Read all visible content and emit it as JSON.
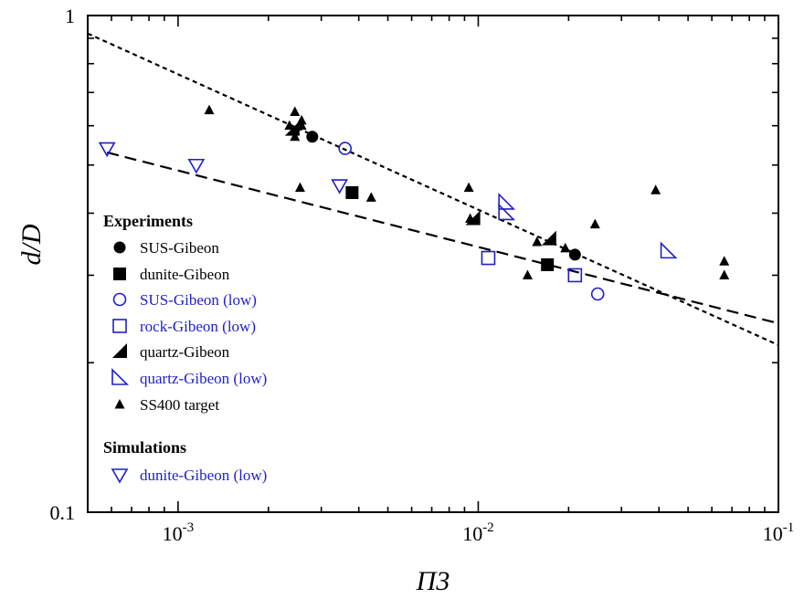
{
  "chart_data": {
    "type": "scatter",
    "title": "",
    "xlabel": "Π3",
    "ylabel": "d/D",
    "xscale": "log",
    "yscale": "log",
    "xlim": [
      0.0005,
      0.1
    ],
    "ylim": [
      0.1,
      1
    ],
    "x_ticks": [
      {
        "value": 0.001,
        "base": "10",
        "exp": "-3"
      },
      {
        "value": 0.01,
        "base": "10",
        "exp": "-2"
      },
      {
        "value": 0.1,
        "base": "10",
        "exp": "-1"
      }
    ],
    "y_ticks": [
      {
        "value": 0.1,
        "label": "0.1"
      },
      {
        "value": 1,
        "label": "1"
      }
    ],
    "grid": false,
    "legend_position": "left",
    "colors": {
      "black": "#000000",
      "blue": "#1f1fc8"
    },
    "legend": {
      "experiments_heading": "Experiments",
      "simulations_heading": "Simulations"
    },
    "series": [
      {
        "name": "SUS-Gibeon",
        "marker": "circle-filled",
        "color": "#000000",
        "group": "experiments",
        "points": [
          [
            0.0028,
            0.57
          ],
          [
            0.021,
            0.33
          ]
        ]
      },
      {
        "name": "dunite-Gibeon",
        "marker": "square-filled",
        "color": "#000000",
        "group": "experiments",
        "points": [
          [
            0.0038,
            0.44
          ],
          [
            0.017,
            0.315
          ]
        ]
      },
      {
        "name": "SUS-Gibeon (low)",
        "marker": "circle-open",
        "color": "#1f1fc8",
        "group": "experiments",
        "points": [
          [
            0.0036,
            0.54
          ],
          [
            0.025,
            0.275
          ]
        ]
      },
      {
        "name": "rock-Gibeon (low)",
        "marker": "square-open",
        "color": "#1f1fc8",
        "group": "experiments",
        "points": [
          [
            0.0108,
            0.325
          ],
          [
            0.021,
            0.3
          ]
        ]
      },
      {
        "name": "quartz-Gibeon",
        "marker": "wedge-filled",
        "color": "#000000",
        "group": "experiments",
        "points": [
          [
            0.0024,
            0.59
          ],
          [
            0.0096,
            0.39
          ],
          [
            0.0172,
            0.355
          ]
        ]
      },
      {
        "name": "quartz-Gibeon (low)",
        "marker": "wedge-open",
        "color": "#1f1fc8",
        "group": "experiments",
        "points": [
          [
            0.0124,
            0.42
          ],
          [
            0.0124,
            0.4
          ],
          [
            0.043,
            0.335
          ]
        ]
      },
      {
        "name": "SS400 target",
        "marker": "triangle-filled",
        "color": "#000000",
        "group": "experiments",
        "points": [
          [
            0.00127,
            0.645
          ],
          [
            0.00235,
            0.6
          ],
          [
            0.00245,
            0.64
          ],
          [
            0.00245,
            0.585
          ],
          [
            0.00245,
            0.57
          ],
          [
            0.00258,
            0.615
          ],
          [
            0.00258,
            0.6
          ],
          [
            0.00255,
            0.45
          ],
          [
            0.0044,
            0.43
          ],
          [
            0.0093,
            0.45
          ],
          [
            0.0094,
            0.39
          ],
          [
            0.0146,
            0.3
          ],
          [
            0.0157,
            0.35
          ],
          [
            0.0195,
            0.34
          ],
          [
            0.0245,
            0.38
          ],
          [
            0.039,
            0.445
          ],
          [
            0.066,
            0.32
          ],
          [
            0.066,
            0.3
          ]
        ]
      },
      {
        "name": "dunite-Gibeon (low)",
        "marker": "triangle-down-open",
        "color": "#1f1fc8",
        "group": "simulations",
        "points": [
          [
            0.00058,
            0.54
          ],
          [
            0.00115,
            0.5
          ],
          [
            0.00345,
            0.455
          ]
        ]
      }
    ],
    "fits": [
      {
        "style": "dotted",
        "points": [
          [
            0.0005,
            0.92
          ],
          [
            0.1,
            0.217
          ]
        ]
      },
      {
        "style": "dashed",
        "points": [
          [
            0.00058,
            0.53
          ],
          [
            0.1,
            0.24
          ]
        ]
      }
    ]
  }
}
